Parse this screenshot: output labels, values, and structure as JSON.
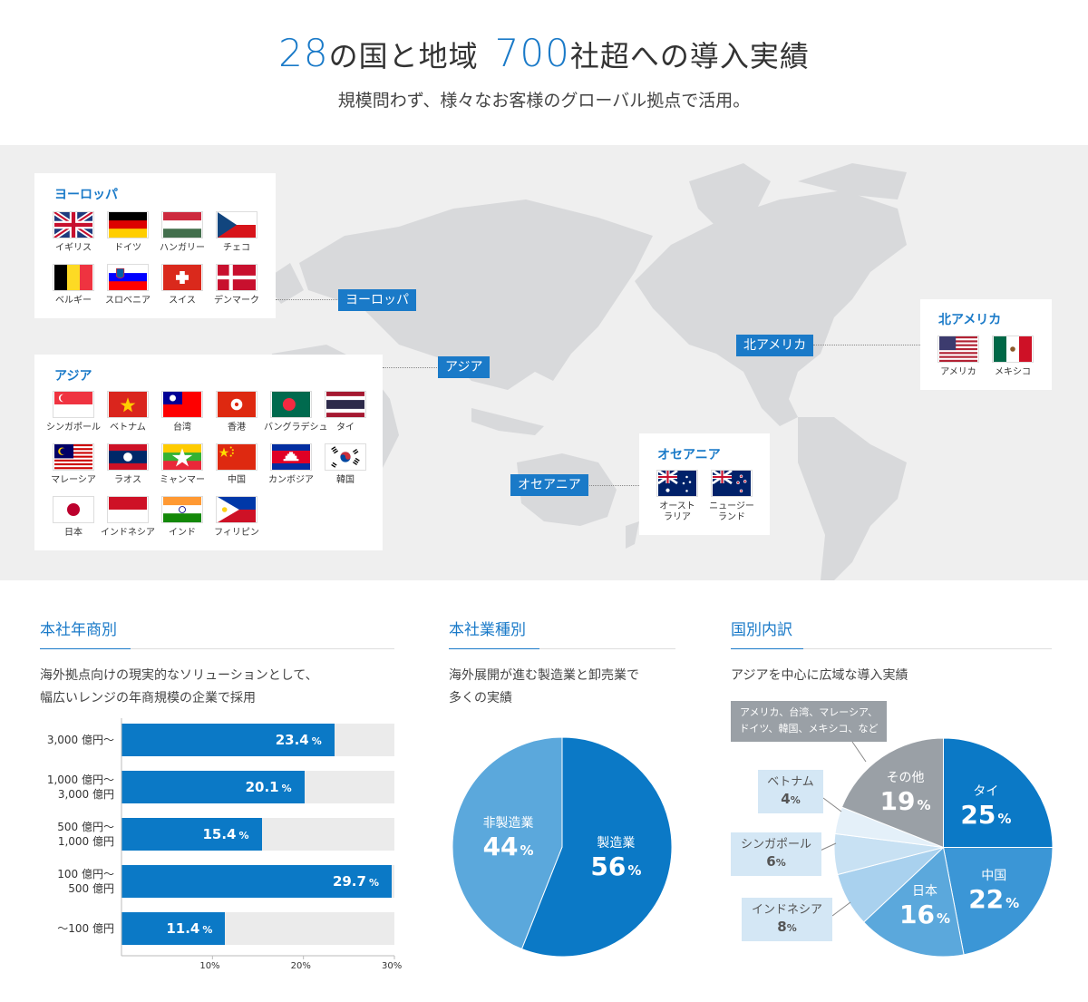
{
  "header": {
    "n_countries": "28",
    "countries_text": "の国と地域",
    "n_companies": "700",
    "companies_text": "社超への導入実績",
    "subtitle": "規模問わず、様々なお客様のグローバル拠点で活用。"
  },
  "map": {
    "europe": {
      "title": "ヨーロッパ",
      "tag": "ヨーロッパ",
      "countries": [
        "イギリス",
        "ドイツ",
        "ハンガリー",
        "チェコ",
        "ベルギー",
        "スロベニア",
        "スイス",
        "デンマーク"
      ]
    },
    "asia": {
      "title": "アジア",
      "tag": "アジア",
      "countries": [
        "シンガポール",
        "ベトナム",
        "台湾",
        "香港",
        "バングラデシュ",
        "タイ",
        "マレーシア",
        "ラオス",
        "ミャンマー",
        "中国",
        "カンボジア",
        "韓国",
        "日本",
        "インドネシア",
        "インド",
        "フィリピン"
      ]
    },
    "north_america": {
      "title": "北アメリカ",
      "tag": "北アメリカ",
      "countries": [
        "アメリカ",
        "メキシコ"
      ]
    },
    "oceania": {
      "title": "オセアニア",
      "tag": "オセアニア",
      "countries": [
        "オースト\nラリア",
        "ニュージー\nランド"
      ]
    }
  },
  "revenue": {
    "title": "本社年商別",
    "desc1": "海外拠点向けの現実的なソリューションとして、",
    "desc2": "幅広いレンジの年商規模の企業で採用",
    "unit": "%"
  },
  "industry": {
    "title": "本社業種別",
    "desc1": "海外展開が進む製造業と卸売業で",
    "desc2": "多くの実績",
    "unit": "%"
  },
  "country": {
    "title": "国別内訳",
    "desc": "アジアを中心に広域な導入実績",
    "other_note1": "アメリカ、台湾、マレーシア、",
    "other_note2": "ドイツ、韓国、メキシコ、など",
    "unit": "%"
  },
  "colors": {
    "accent": "#1a7ac8",
    "bar": "#0b79c6",
    "pie_dark": "#0b79c6",
    "pie_light": "#5ba8dc",
    "gray": "#9aa0a6"
  },
  "chart_data": [
    {
      "type": "bar",
      "title": "本社年商別",
      "categories": [
        "3,000 億円〜",
        "1,000 億円〜 3,000 億円",
        "500 億円〜 1,000 億円",
        "100 億円〜 500 億円",
        "〜100 億円"
      ],
      "values": [
        23.4,
        20.1,
        15.4,
        29.7,
        11.4
      ],
      "xlim": [
        0,
        30
      ],
      "xticks": [
        10,
        20,
        30
      ],
      "xtick_labels": [
        "10%",
        "20%",
        "30%"
      ],
      "orientation": "horizontal"
    },
    {
      "type": "pie",
      "title": "本社業種別",
      "labels": [
        "製造業",
        "非製造業"
      ],
      "values": [
        56,
        44
      ]
    },
    {
      "type": "pie",
      "title": "国別内訳",
      "labels": [
        "タイ",
        "中国",
        "日本",
        "インドネシア",
        "シンガポール",
        "ベトナム",
        "その他"
      ],
      "values": [
        25,
        22,
        16,
        8,
        6,
        4,
        19
      ]
    }
  ]
}
